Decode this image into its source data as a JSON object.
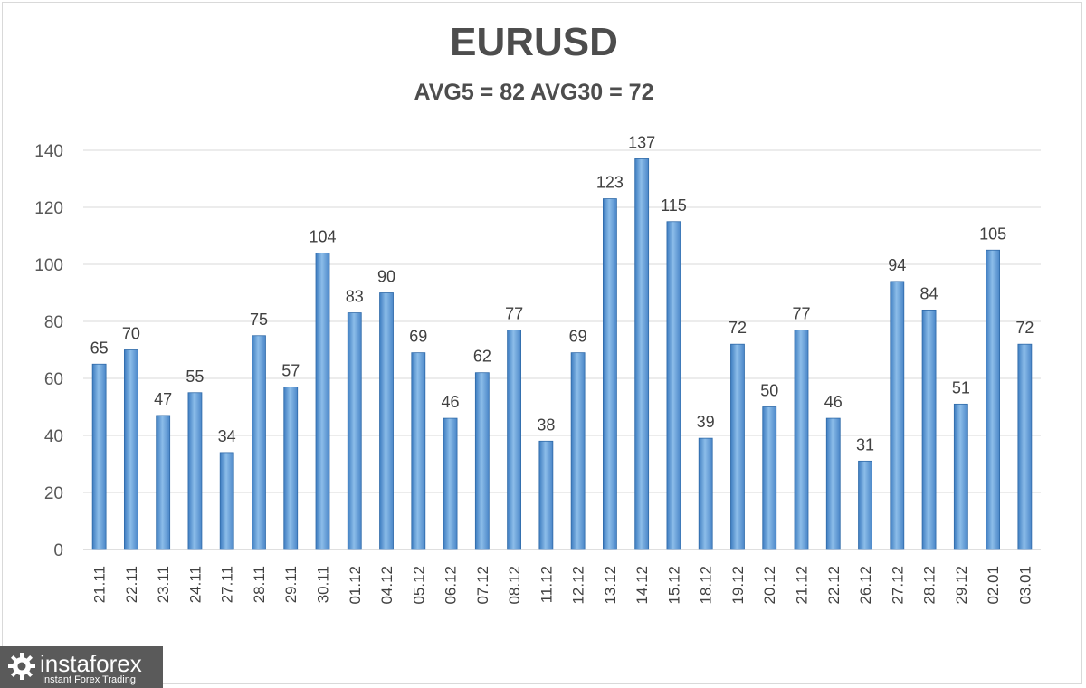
{
  "chart_data": {
    "type": "bar",
    "title": "EURUSD",
    "subtitle": "AVG5 = 82 AVG30 = 72",
    "categories": [
      "21.11",
      "22.11",
      "23.11",
      "24.11",
      "27.11",
      "28.11",
      "29.11",
      "30.11",
      "01.12",
      "04.12",
      "05.12",
      "06.12",
      "07.12",
      "08.12",
      "11.12",
      "12.12",
      "13.12",
      "14.12",
      "15.12",
      "18.12",
      "19.12",
      "20.12",
      "21.12",
      "22.12",
      "26.12",
      "27.12",
      "28.12",
      "29.12",
      "02.01",
      "03.01"
    ],
    "values": [
      65,
      70,
      47,
      55,
      34,
      75,
      57,
      104,
      83,
      90,
      69,
      46,
      62,
      77,
      38,
      69,
      123,
      137,
      115,
      39,
      72,
      50,
      77,
      46,
      31,
      94,
      84,
      51,
      105,
      72
    ],
    "ylim": [
      0,
      140
    ],
    "yticks": [
      0,
      20,
      40,
      60,
      80,
      100,
      120,
      140
    ],
    "grid": true,
    "bar_color": "#5b9bd5",
    "data_labels": true
  },
  "logo": {
    "name": "instaforex",
    "tagline": "Instant Forex Trading"
  }
}
